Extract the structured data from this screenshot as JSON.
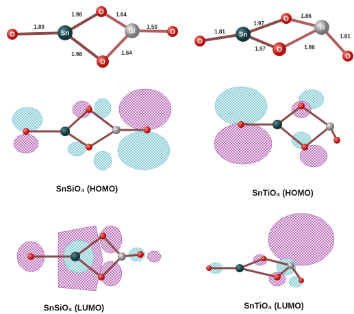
{
  "structures": [
    {
      "bond_labels": [
        "1.80",
        "1.98",
        "1.64",
        "1.50",
        "1.98",
        "1.64"
      ],
      "atom_labels": [
        "O",
        "Sn",
        "O",
        "Si",
        "O",
        "O"
      ]
    },
    {
      "bond_labels": [
        "1.81",
        "1.97",
        "1.86",
        "1.61",
        "1.97",
        "1.86"
      ],
      "atom_labels": [
        "O",
        "Sn",
        "O",
        "Ti",
        "O",
        "O"
      ]
    }
  ],
  "captions": [
    "SnSiO₄ (HOMO)",
    "SnTiO₄ (HOMO)",
    "SnSiO₄ (LUMO)",
    "SnTiO₄ (LUMO)"
  ]
}
